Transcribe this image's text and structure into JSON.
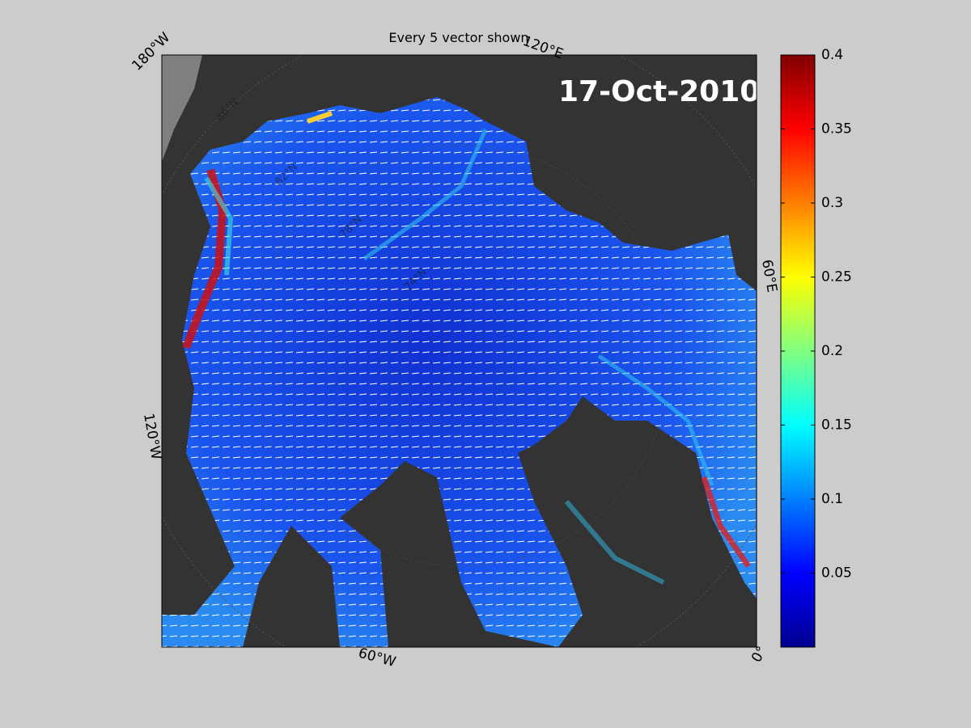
{
  "title": "Every 5 vector shown",
  "date": "17-Oct-2010",
  "longitude_labels": [
    "180°W",
    "120°E",
    "60°E",
    "0°",
    "60°W",
    "120°W"
  ],
  "latitude_labels": [
    "86°N",
    "82°N",
    "78°N",
    "74°N"
  ],
  "colorbar": {
    "lim": [
      0,
      0.4
    ],
    "ticks": [
      0.05,
      0.1,
      0.15,
      0.2,
      0.25,
      0.3,
      0.35,
      0.4
    ],
    "colormap": "jet"
  }
}
